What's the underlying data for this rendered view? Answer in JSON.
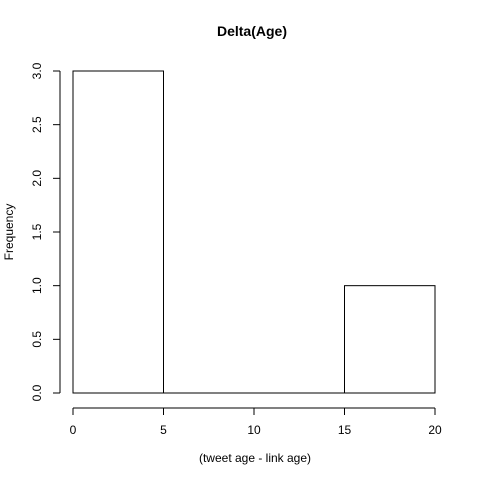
{
  "chart_data": {
    "type": "bar",
    "title": "Delta(Age)",
    "xlabel": "(tweet age - link age)",
    "ylabel": "Frequency",
    "bins": [
      {
        "start": 0,
        "end": 5,
        "count": 3
      },
      {
        "start": 5,
        "end": 10,
        "count": 0
      },
      {
        "start": 10,
        "end": 15,
        "count": 0
      },
      {
        "start": 15,
        "end": 20,
        "count": 1
      }
    ],
    "xlim": [
      0,
      20
    ],
    "ylim": [
      0,
      3
    ],
    "xticks": [
      0,
      5,
      10,
      15,
      20
    ],
    "yticks": [
      0.0,
      0.5,
      1.0,
      1.5,
      2.0,
      2.5,
      3.0
    ],
    "xtick_labels": [
      "0",
      "5",
      "10",
      "15",
      "20"
    ],
    "ytick_labels": [
      "0.0",
      "0.5",
      "1.0",
      "1.5",
      "2.0",
      "2.5",
      "3.0"
    ],
    "grid": false,
    "colors": {
      "bar_fill": "#ffffff",
      "bar_stroke": "#000000",
      "text": "#000000"
    }
  }
}
